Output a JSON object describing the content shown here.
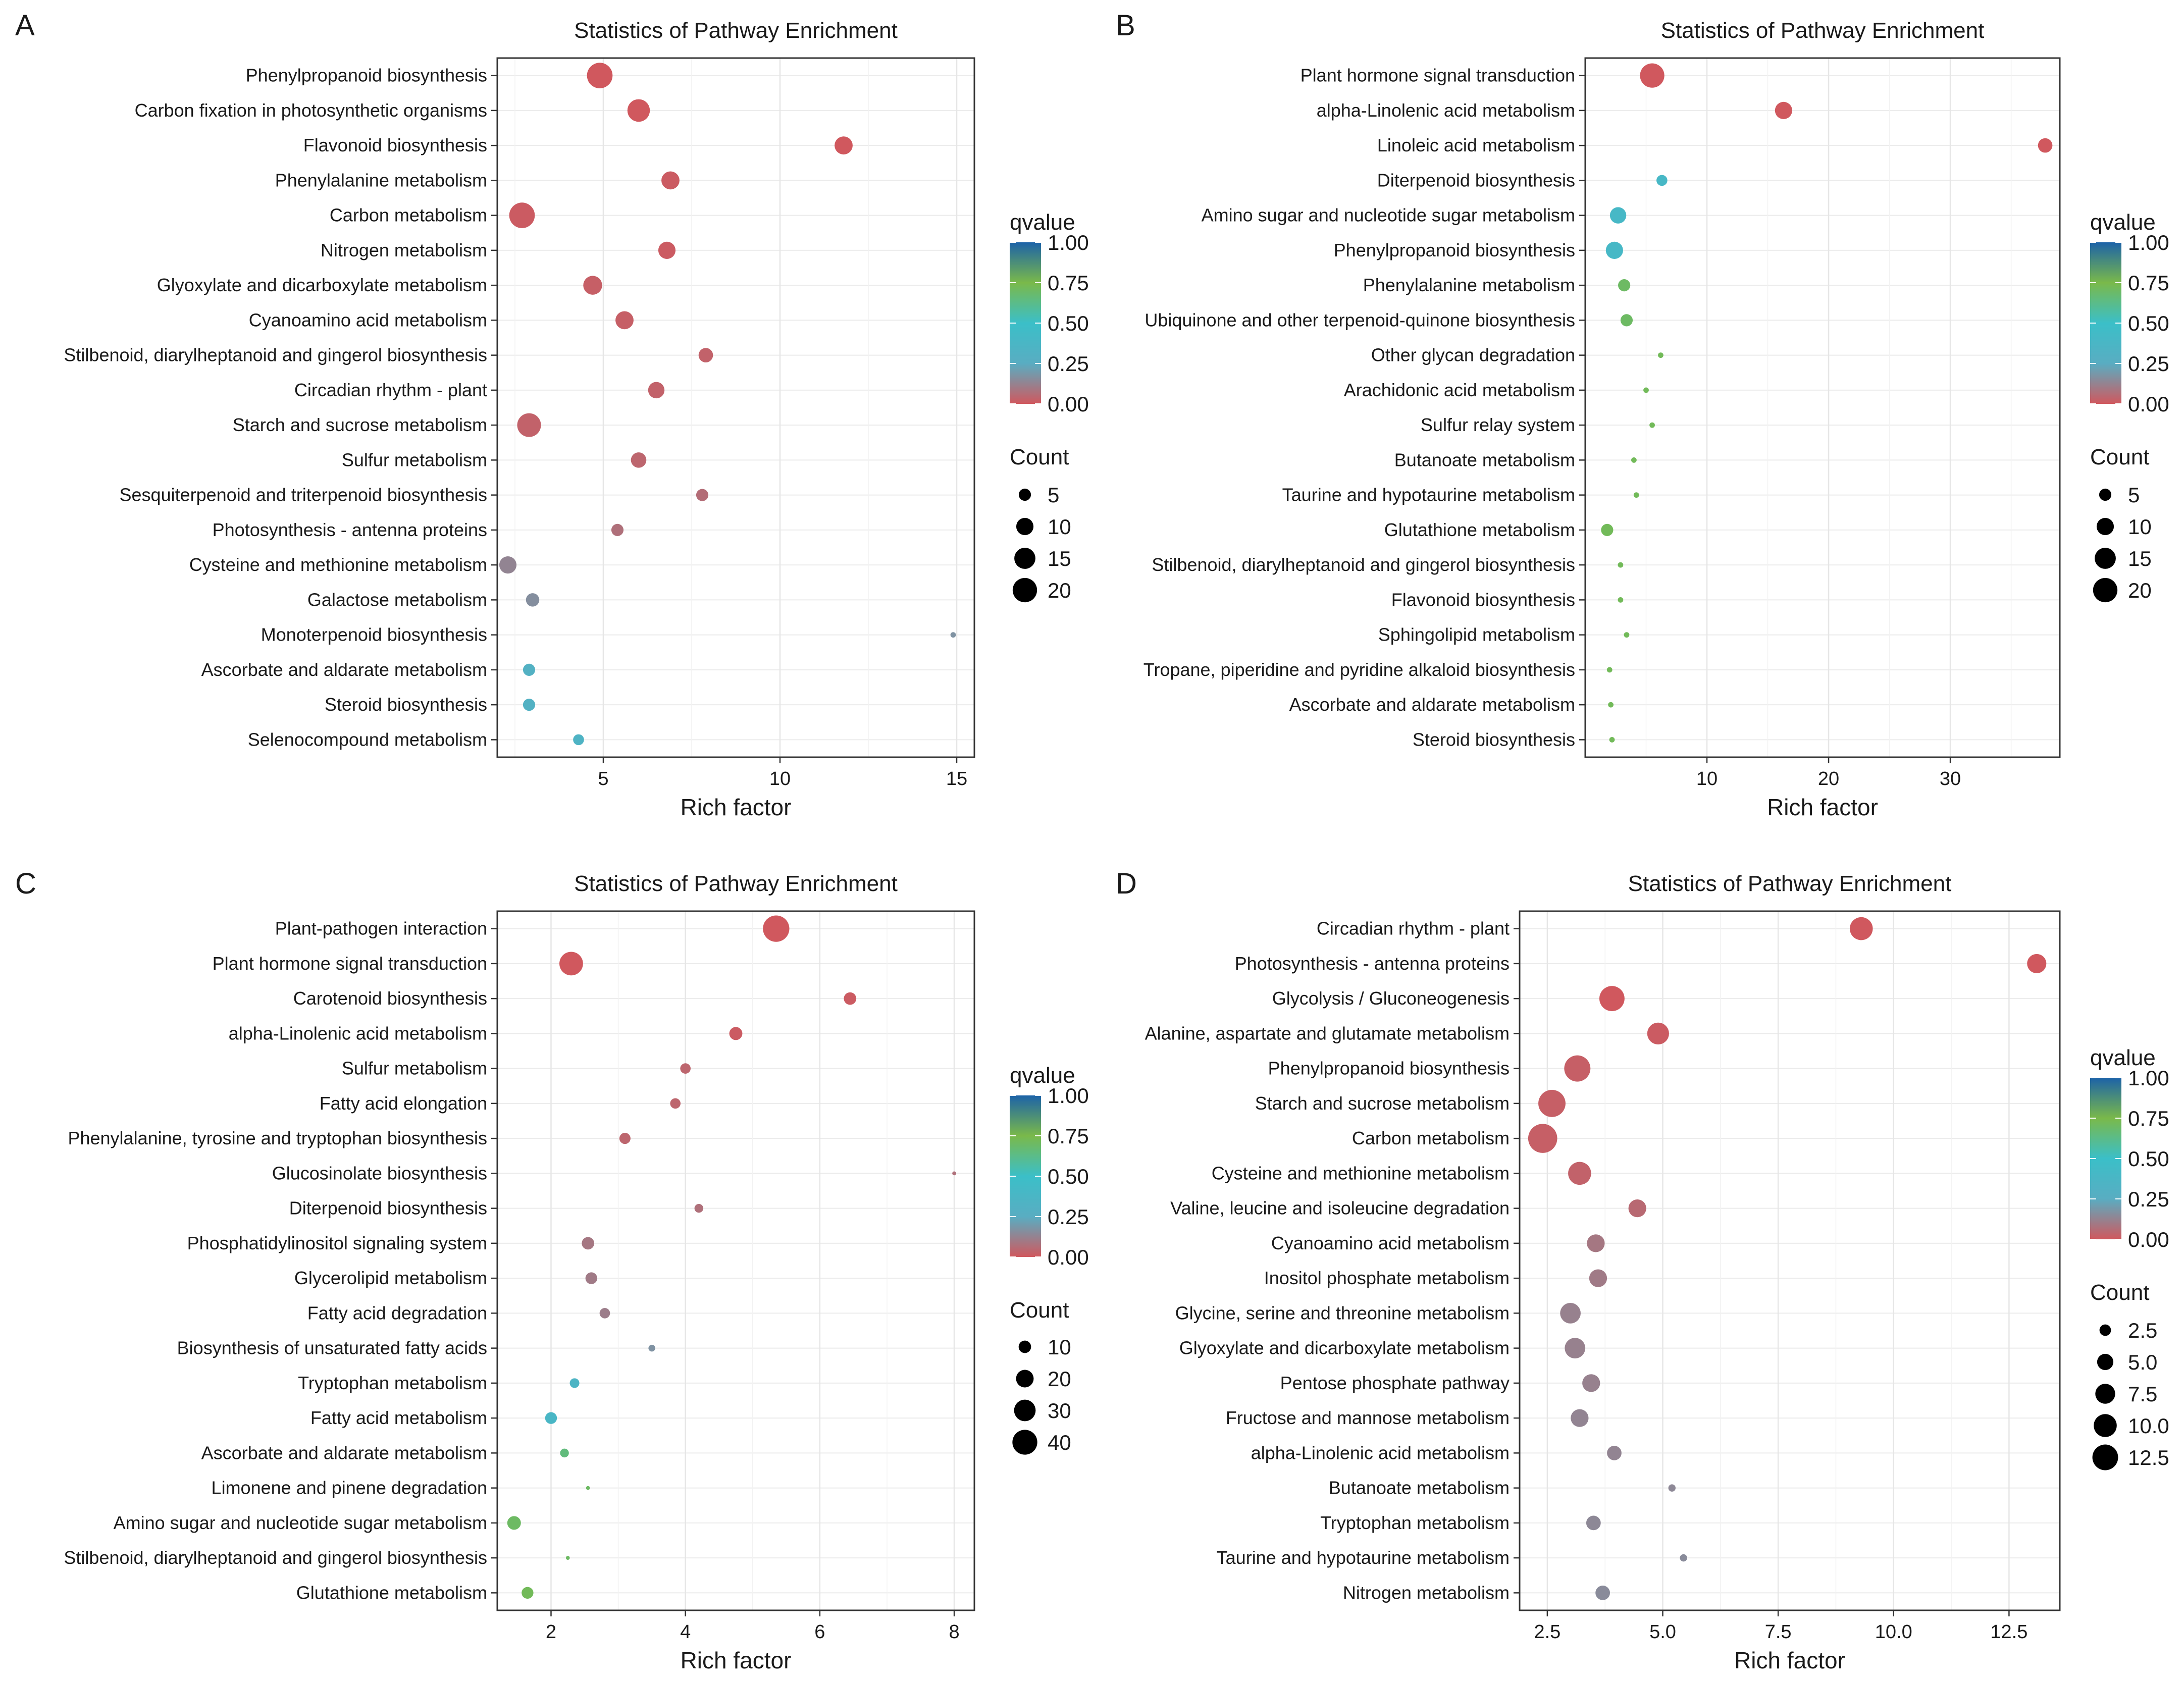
{
  "chart_data": [
    {
      "type": "scatter",
      "panel": "A",
      "title": "Statistics of Pathway Enrichment",
      "xlabel": "Rich  factor",
      "xlim": [
        2.0,
        15.5
      ],
      "xticks": [
        5,
        10,
        15
      ],
      "xtick_labels": [
        "5",
        "10",
        "15"
      ],
      "size_legend": {
        "title": "Count",
        "values": [
          5,
          10,
          15,
          20
        ],
        "labels": [
          "5",
          "10",
          "15",
          "20"
        ]
      },
      "color_legend": {
        "title": "qvalue",
        "range": [
          0,
          1
        ],
        "ticks": [
          "1.00",
          "0.75",
          "0.50",
          "0.25",
          "0.00"
        ]
      },
      "pathways": [
        {
          "name": "Phenylpropanoid biosynthesis",
          "x": 4.9,
          "count": 22,
          "q": 0.0
        },
        {
          "name": "Carbon fixation in photosynthetic organisms",
          "x": 6.0,
          "count": 17,
          "q": 0.0
        },
        {
          "name": "Flavonoid biosynthesis",
          "x": 11.8,
          "count": 11,
          "q": 0.0
        },
        {
          "name": "Phenylalanine metabolism",
          "x": 6.9,
          "count": 11,
          "q": 0.01
        },
        {
          "name": "Carbon metabolism",
          "x": 2.7,
          "count": 22,
          "q": 0.01
        },
        {
          "name": "Nitrogen metabolism",
          "x": 6.8,
          "count": 10,
          "q": 0.01
        },
        {
          "name": "Glyoxylate and dicarboxylate metabolism",
          "x": 4.7,
          "count": 12,
          "q": 0.02
        },
        {
          "name": "Cyanoamino acid metabolism",
          "x": 5.6,
          "count": 11,
          "q": 0.02
        },
        {
          "name": "Stilbenoid, diarylheptanoid and gingerol biosynthesis",
          "x": 7.9,
          "count": 7,
          "q": 0.03
        },
        {
          "name": "Circadian rhythm - plant",
          "x": 6.5,
          "count": 9,
          "q": 0.03
        },
        {
          "name": "Starch and sucrose metabolism",
          "x": 2.9,
          "count": 19,
          "q": 0.03
        },
        {
          "name": "Sulfur metabolism",
          "x": 6.0,
          "count": 8,
          "q": 0.04
        },
        {
          "name": "Sesquiterpenoid and triterpenoid biosynthesis",
          "x": 7.8,
          "count": 5,
          "q": 0.06
        },
        {
          "name": "Photosynthesis - antenna proteins",
          "x": 5.4,
          "count": 5,
          "q": 0.07
        },
        {
          "name": "Cysteine and methionine metabolism",
          "x": 2.3,
          "count": 10,
          "q": 0.13
        },
        {
          "name": "Galactose metabolism",
          "x": 3.0,
          "count": 6,
          "q": 0.16
        },
        {
          "name": "Monoterpenoid biosynthesis",
          "x": 14.9,
          "count": 1,
          "q": 0.17
        },
        {
          "name": "Ascorbate and aldarate metabolism",
          "x": 2.9,
          "count": 5,
          "q": 0.3
        },
        {
          "name": "Steroid biosynthesis",
          "x": 2.9,
          "count": 5,
          "q": 0.31
        },
        {
          "name": "Selenocompound metabolism",
          "x": 4.3,
          "count": 4,
          "q": 0.34
        }
      ]
    },
    {
      "type": "scatter",
      "panel": "B",
      "title": "Statistics of Pathway Enrichment",
      "xlabel": "Rich  factor",
      "xlim": [
        0.0,
        39.0
      ],
      "xticks": [
        10,
        20,
        30
      ],
      "xtick_labels": [
        "10",
        "20",
        "30"
      ],
      "size_legend": {
        "title": "Count",
        "values": [
          5,
          10,
          15,
          20
        ],
        "labels": [
          "5",
          "10",
          "15",
          "20"
        ]
      },
      "color_legend": {
        "title": "qvalue",
        "range": [
          0,
          1
        ],
        "ticks": [
          "1.00",
          "0.75",
          "0.50",
          "0.25",
          "0.00"
        ]
      },
      "pathways": [
        {
          "name": "Plant hormone signal transduction",
          "x": 5.5,
          "count": 20,
          "q": 0.0
        },
        {
          "name": "alpha-Linolenic acid metabolism",
          "x": 16.3,
          "count": 10,
          "q": 0.0
        },
        {
          "name": "Linoleic acid metabolism",
          "x": 37.8,
          "count": 7,
          "q": 0.0
        },
        {
          "name": "Diterpenoid biosynthesis",
          "x": 6.3,
          "count": 4,
          "q": 0.4
        },
        {
          "name": "Amino sugar and nucleotide sugar metabolism",
          "x": 2.7,
          "count": 9,
          "q": 0.4
        },
        {
          "name": "Phenylpropanoid biosynthesis",
          "x": 2.4,
          "count": 10,
          "q": 0.4
        },
        {
          "name": "Phenylalanine metabolism",
          "x": 3.2,
          "count": 5,
          "q": 0.7
        },
        {
          "name": "Ubiquinone and other terpenoid-quinone biosynthesis",
          "x": 3.4,
          "count": 5,
          "q": 0.7
        },
        {
          "name": "Other glycan degradation",
          "x": 6.2,
          "count": 1,
          "q": 0.72
        },
        {
          "name": "Arachidonic acid metabolism",
          "x": 5.0,
          "count": 1,
          "q": 0.72
        },
        {
          "name": "Sulfur relay system",
          "x": 5.5,
          "count": 1,
          "q": 0.72
        },
        {
          "name": "Butanoate metabolism",
          "x": 4.0,
          "count": 1,
          "q": 0.72
        },
        {
          "name": "Taurine and hypotaurine metabolism",
          "x": 4.2,
          "count": 1,
          "q": 0.72
        },
        {
          "name": "Glutathione metabolism",
          "x": 1.8,
          "count": 5,
          "q": 0.72
        },
        {
          "name": "Stilbenoid, diarylheptanoid and gingerol biosynthesis",
          "x": 2.9,
          "count": 1,
          "q": 0.72
        },
        {
          "name": "Flavonoid biosynthesis",
          "x": 2.9,
          "count": 1,
          "q": 0.72
        },
        {
          "name": "Sphingolipid metabolism",
          "x": 3.4,
          "count": 1,
          "q": 0.72
        },
        {
          "name": "Tropane, piperidine and pyridine alkaloid biosynthesis",
          "x": 2.0,
          "count": 1,
          "q": 0.72
        },
        {
          "name": "Ascorbate and aldarate metabolism",
          "x": 2.1,
          "count": 1,
          "q": 0.72
        },
        {
          "name": "Steroid biosynthesis",
          "x": 2.2,
          "count": 1,
          "q": 0.72
        }
      ]
    },
    {
      "type": "scatter",
      "panel": "C",
      "title": "Statistics of Pathway Enrichment",
      "xlabel": "Rich  factor",
      "xlim": [
        1.2,
        8.3
      ],
      "xticks": [
        2,
        4,
        6,
        8
      ],
      "xtick_labels": [
        "2",
        "4",
        "6",
        "8"
      ],
      "size_legend": {
        "title": "Count",
        "values": [
          10,
          20,
          30,
          40
        ],
        "labels": [
          "10",
          "20",
          "30",
          "40"
        ]
      },
      "color_legend": {
        "title": "qvalue",
        "range": [
          0,
          1
        ],
        "ticks": [
          "1.00",
          "0.75",
          "0.50",
          "0.25",
          "0.00"
        ]
      },
      "pathways": [
        {
          "name": "Plant-pathogen interaction",
          "x": 5.35,
          "count": 45,
          "q": 0.0
        },
        {
          "name": "Plant hormone signal transduction",
          "x": 2.3,
          "count": 36,
          "q": 0.0
        },
        {
          "name": "Carotenoid biosynthesis",
          "x": 6.45,
          "count": 10,
          "q": 0.01
        },
        {
          "name": "alpha-Linolenic acid metabolism",
          "x": 4.75,
          "count": 11,
          "q": 0.01
        },
        {
          "name": "Sulfur metabolism",
          "x": 4.0,
          "count": 7,
          "q": 0.04
        },
        {
          "name": "Fatty acid elongation",
          "x": 3.85,
          "count": 7,
          "q": 0.04
        },
        {
          "name": "Phenylalanine, tyrosine and tryptophan biosynthesis",
          "x": 3.1,
          "count": 8,
          "q": 0.04
        },
        {
          "name": "Glucosinolate biosynthesis",
          "x": 8.0,
          "count": 1,
          "q": 0.07
        },
        {
          "name": "Diterpenoid biosynthesis",
          "x": 4.2,
          "count": 5,
          "q": 0.07
        },
        {
          "name": "Phosphatidylinositol signaling system",
          "x": 2.55,
          "count": 10,
          "q": 0.09
        },
        {
          "name": "Glycerolipid metabolism",
          "x": 2.6,
          "count": 9,
          "q": 0.1
        },
        {
          "name": "Fatty acid degradation",
          "x": 2.8,
          "count": 7,
          "q": 0.11
        },
        {
          "name": "Biosynthesis of unsaturated fatty acids",
          "x": 3.5,
          "count": 3,
          "q": 0.17
        },
        {
          "name": "Tryptophan metabolism",
          "x": 2.35,
          "count": 6,
          "q": 0.35
        },
        {
          "name": "Fatty acid metabolism",
          "x": 2.0,
          "count": 9,
          "q": 0.38
        },
        {
          "name": "Ascorbate and aldarate metabolism",
          "x": 2.2,
          "count": 5,
          "q": 0.65
        },
        {
          "name": "Limonene and pinene degradation",
          "x": 2.55,
          "count": 1,
          "q": 0.7
        },
        {
          "name": "Amino sugar and nucleotide sugar metabolism",
          "x": 1.45,
          "count": 12,
          "q": 0.7
        },
        {
          "name": "Stilbenoid, diarylheptanoid and gingerol biosynthesis",
          "x": 2.25,
          "count": 1,
          "q": 0.7
        },
        {
          "name": "Glutathione metabolism",
          "x": 1.65,
          "count": 9,
          "q": 0.72
        }
      ]
    },
    {
      "type": "scatter",
      "panel": "D",
      "title": "Statistics of Pathway Enrichment",
      "xlabel": "Rich  factor",
      "xlim": [
        1.9,
        13.6
      ],
      "xticks": [
        2.5,
        5.0,
        7.5,
        10.0,
        12.5
      ],
      "xtick_labels": [
        "2.5",
        "5.0",
        "7.5",
        "10.0",
        "12.5"
      ],
      "size_legend": {
        "title": "Count",
        "values": [
          2.5,
          5.0,
          7.5,
          10.0,
          12.5
        ],
        "labels": [
          "2.5",
          "5.0",
          "7.5",
          "10.0",
          "12.5"
        ]
      },
      "color_legend": {
        "title": "qvalue",
        "range": [
          0,
          1
        ],
        "ticks": [
          "1.00",
          "0.75",
          "0.50",
          "0.25",
          "0.00"
        ]
      },
      "pathways": [
        {
          "name": "Circadian rhythm - plant",
          "x": 9.3,
          "count": 10,
          "q": 0.0
        },
        {
          "name": "Photosynthesis - antenna proteins",
          "x": 13.1,
          "count": 7,
          "q": 0.0
        },
        {
          "name": "Glycolysis / Gluconeogenesis",
          "x": 3.9,
          "count": 12,
          "q": 0.0
        },
        {
          "name": "Alanine, aspartate and glutamate metabolism",
          "x": 4.9,
          "count": 9,
          "q": 0.01
        },
        {
          "name": "Phenylpropanoid biosynthesis",
          "x": 3.15,
          "count": 13,
          "q": 0.02
        },
        {
          "name": "Starch and sucrose metabolism",
          "x": 2.6,
          "count": 14,
          "q": 0.02
        },
        {
          "name": "Carbon metabolism",
          "x": 2.4,
          "count": 16,
          "q": 0.02
        },
        {
          "name": "Cysteine and methionine metabolism",
          "x": 3.2,
          "count": 10,
          "q": 0.03
        },
        {
          "name": "Valine, leucine and isoleucine degradation",
          "x": 4.45,
          "count": 6,
          "q": 0.05
        },
        {
          "name": "Cyanoamino acid metabolism",
          "x": 3.55,
          "count": 6,
          "q": 0.09
        },
        {
          "name": "Inositol phosphate metabolism",
          "x": 3.6,
          "count": 6,
          "q": 0.1
        },
        {
          "name": "Glycine, serine and threonine metabolism",
          "x": 3.0,
          "count": 8,
          "q": 0.12
        },
        {
          "name": "Glyoxylate and dicarboxylate metabolism",
          "x": 3.1,
          "count": 8,
          "q": 0.12
        },
        {
          "name": "Pentose phosphate pathway",
          "x": 3.45,
          "count": 6,
          "q": 0.12
        },
        {
          "name": "Fructose and mannose metabolism",
          "x": 3.2,
          "count": 6,
          "q": 0.13
        },
        {
          "name": "alpha-Linolenic acid metabolism",
          "x": 3.95,
          "count": 4,
          "q": 0.13
        },
        {
          "name": "Butanoate metabolism",
          "x": 5.2,
          "count": 1,
          "q": 0.14
        },
        {
          "name": "Tryptophan metabolism",
          "x": 3.5,
          "count": 4,
          "q": 0.14
        },
        {
          "name": "Taurine and hypotaurine metabolism",
          "x": 5.45,
          "count": 1,
          "q": 0.15
        },
        {
          "name": "Nitrogen metabolism",
          "x": 3.7,
          "count": 4,
          "q": 0.15
        }
      ]
    }
  ]
}
